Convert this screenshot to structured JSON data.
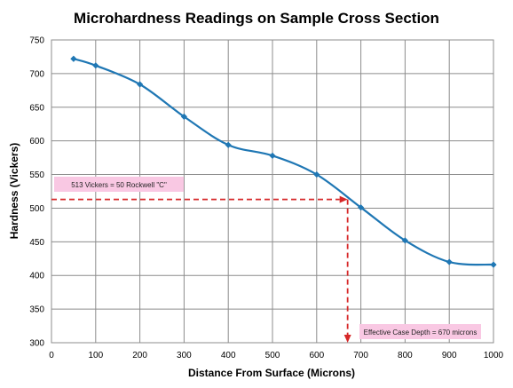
{
  "chart_data": {
    "type": "line",
    "title": "Microhardness Readings on Sample Cross Section",
    "xlabel": "Distance From Surface (Microns)",
    "ylabel": "Hardness (Vickers)",
    "xlim": [
      0,
      1000
    ],
    "ylim": [
      300,
      750
    ],
    "x_ticks": [
      0,
      100,
      200,
      300,
      400,
      500,
      600,
      700,
      800,
      900,
      1000
    ],
    "y_ticks": [
      300,
      350,
      400,
      450,
      500,
      550,
      600,
      650,
      700,
      750
    ],
    "grid": true,
    "series": [
      {
        "color": "#1f77b4",
        "x": [
          50,
          100,
          200,
          300,
          400,
          500,
          600,
          700,
          800,
          900,
          1000
        ],
        "y": [
          722,
          712,
          684,
          636,
          594,
          578,
          550,
          501,
          452,
          420,
          416
        ]
      }
    ],
    "reference_lines": [
      {
        "axis": "y",
        "value": 513,
        "x_end": 670,
        "color": "#d62728",
        "label": "513 Vickers = 50 Rockwell \"C\""
      },
      {
        "axis": "x",
        "value": 670,
        "y_start": 513,
        "color": "#d62728",
        "label": "Effective Case Depth = 670 microns"
      }
    ],
    "annotation_color": "#f9c8e3"
  }
}
